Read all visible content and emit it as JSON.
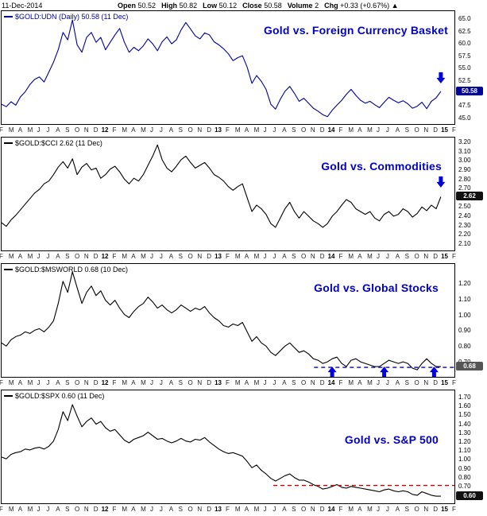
{
  "header": {
    "date": "11-Dec-2014",
    "fields": [
      {
        "label": "Open",
        "value": "50.52"
      },
      {
        "label": "High",
        "value": "50.82"
      },
      {
        "label": "Low",
        "value": "50.12"
      },
      {
        "label": "Close",
        "value": "50.58"
      },
      {
        "label": "Volume",
        "value": "2"
      },
      {
        "label": "Chg",
        "value": "+0.33 (+0.67%)"
      }
    ],
    "change_arrow": "▲"
  },
  "colors": {
    "title_blue": "#0000cc",
    "panel1_line": "#000099",
    "line_black": "#000000",
    "arrow_blue": "#0000dd",
    "support_dash_blue": "#0000cc",
    "resistance_dash_red": "#cc0000"
  },
  "x_axis_labels": [
    "F",
    "M",
    "A",
    "M",
    "J",
    "J",
    "A",
    "S",
    "O",
    "N",
    "D",
    "12",
    "F",
    "M",
    "A",
    "M",
    "J",
    "J",
    "A",
    "S",
    "O",
    "N",
    "D",
    "13",
    "F",
    "M",
    "A",
    "M",
    "J",
    "J",
    "A",
    "S",
    "O",
    "N",
    "D",
    "14",
    "F",
    "M",
    "A",
    "M",
    "J",
    "J",
    "A",
    "S",
    "O",
    "N",
    "D",
    "15",
    "F"
  ],
  "chart_data": [
    {
      "type": "line",
      "legend": "$GOLD:UDN (Daily) 50.58 (11 Dec)",
      "title": "Gold vs. Foreign Currency Basket",
      "line_color": "#000099",
      "ylim": [
        44.0,
        66.8
      ],
      "yticks": [
        "65.0",
        "62.5",
        "60.0",
        "57.5",
        "55.0",
        "52.5",
        "50.0",
        "47.5",
        "45.0"
      ],
      "last_value": 50.58,
      "last_label": "50.58",
      "last_box_color": "#000099",
      "x_end": 0.97,
      "values": [
        48.0,
        47.5,
        48.5,
        47.8,
        49.5,
        50.5,
        52.0,
        53.0,
        53.5,
        52.5,
        54.5,
        56.5,
        59.0,
        62.5,
        61.0,
        65.0,
        60.0,
        58.5,
        61.5,
        62.5,
        60.5,
        61.5,
        59.0,
        60.5,
        62.0,
        63.3,
        60.5,
        58.5,
        59.5,
        58.8,
        59.8,
        61.2,
        60.2,
        58.8,
        60.6,
        61.6,
        60.2,
        61.0,
        63.0,
        64.5,
        63.2,
        61.8,
        61.2,
        62.4,
        62.0,
        60.6,
        60.0,
        59.2,
        58.2,
        56.8,
        57.4,
        57.8,
        55.5,
        52.2,
        53.8,
        52.6,
        51.0,
        48.0,
        47.0,
        49.0,
        50.6,
        51.6,
        50.2,
        48.6,
        49.2,
        48.2,
        47.2,
        46.6,
        45.9,
        45.5,
        46.8,
        47.8,
        48.8,
        50.0,
        51.0,
        49.8,
        48.8,
        48.2,
        48.6,
        47.9,
        47.3,
        48.4,
        49.4,
        48.8,
        48.3,
        48.7,
        48.1,
        47.2,
        47.6,
        48.4,
        47.1,
        48.6,
        49.3,
        50.6
      ],
      "annotations": [
        {
          "type": "arrow_down",
          "x": 0.97,
          "y": 52.2,
          "color": "#0000dd"
        }
      ]
    },
    {
      "type": "line",
      "legend": "$GOLD:$CCI 2.62 (11 Dec)",
      "title": "Gold vs. Commodities",
      "line_color": "#000000",
      "ylim": [
        2.04,
        3.26
      ],
      "yticks": [
        "3.20",
        "3.10",
        "3.00",
        "2.90",
        "2.80",
        "2.70",
        "2.60",
        "2.50",
        "2.40",
        "2.30",
        "2.20",
        "2.10"
      ],
      "last_value": 2.62,
      "last_label": "2.62",
      "last_box_color": "#111111",
      "x_end": 0.97,
      "values": [
        2.34,
        2.3,
        2.37,
        2.42,
        2.48,
        2.54,
        2.6,
        2.66,
        2.7,
        2.76,
        2.79,
        2.86,
        2.94,
        3.0,
        2.93,
        3.03,
        2.86,
        2.94,
        2.98,
        2.91,
        2.93,
        2.82,
        2.86,
        2.92,
        2.95,
        2.89,
        2.81,
        2.76,
        2.82,
        2.79,
        2.86,
        2.96,
        3.06,
        3.18,
        3.02,
        2.93,
        2.89,
        2.95,
        3.02,
        3.06,
        2.99,
        2.93,
        2.96,
        2.99,
        2.93,
        2.86,
        2.83,
        2.79,
        2.73,
        2.69,
        2.73,
        2.76,
        2.61,
        2.46,
        2.53,
        2.49,
        2.43,
        2.33,
        2.29,
        2.39,
        2.49,
        2.56,
        2.46,
        2.39,
        2.46,
        2.41,
        2.36,
        2.33,
        2.29,
        2.33,
        2.41,
        2.46,
        2.53,
        2.59,
        2.56,
        2.49,
        2.46,
        2.43,
        2.46,
        2.39,
        2.36,
        2.43,
        2.46,
        2.41,
        2.43,
        2.49,
        2.46,
        2.4,
        2.44,
        2.51,
        2.47,
        2.53,
        2.49,
        2.62
      ],
      "annotations": [
        {
          "type": "arrow_down",
          "x": 0.97,
          "y": 2.72,
          "color": "#0000dd"
        }
      ]
    },
    {
      "type": "line",
      "legend": "$GOLD:$MSWORLD 0.68 (10 Dec)",
      "title": "Gold vs. Global Stocks",
      "line_color": "#000000",
      "ylim": [
        0.615,
        1.33
      ],
      "yticks": [
        "1.20",
        "1.10",
        "1.00",
        "0.90",
        "0.80",
        "0.70"
      ],
      "last_value": 0.68,
      "last_label": "0.68",
      "last_box_color": "#555555",
      "x_end": 0.97,
      "values": [
        0.83,
        0.81,
        0.85,
        0.87,
        0.88,
        0.9,
        0.89,
        0.91,
        0.92,
        0.9,
        0.93,
        0.97,
        1.08,
        1.22,
        1.15,
        1.28,
        1.18,
        1.08,
        1.15,
        1.19,
        1.13,
        1.16,
        1.1,
        1.07,
        1.1,
        1.05,
        1.01,
        0.99,
        1.03,
        1.06,
        1.08,
        1.12,
        1.09,
        1.05,
        1.07,
        1.04,
        1.02,
        1.04,
        1.07,
        1.05,
        1.03,
        1.05,
        1.04,
        1.06,
        1.02,
        0.99,
        0.97,
        0.94,
        0.93,
        0.95,
        0.94,
        0.96,
        0.9,
        0.84,
        0.87,
        0.83,
        0.81,
        0.77,
        0.75,
        0.78,
        0.81,
        0.83,
        0.8,
        0.77,
        0.78,
        0.76,
        0.73,
        0.72,
        0.7,
        0.71,
        0.73,
        0.74,
        0.7,
        0.68,
        0.72,
        0.73,
        0.71,
        0.7,
        0.69,
        0.68,
        0.68,
        0.7,
        0.72,
        0.71,
        0.7,
        0.71,
        0.7,
        0.67,
        0.66,
        0.7,
        0.73,
        0.7,
        0.68,
        0.68
      ],
      "annotations": [
        {
          "type": "hline",
          "x0": 0.69,
          "x1": 1.0,
          "y": 0.675,
          "color": "#0000cc"
        },
        {
          "type": "arrow_up",
          "x": 0.73,
          "y": 0.68,
          "color": "#0000dd"
        },
        {
          "type": "arrow_up",
          "x": 0.845,
          "y": 0.68,
          "color": "#0000dd"
        },
        {
          "type": "arrow_up",
          "x": 0.955,
          "y": 0.68,
          "color": "#0000dd"
        }
      ]
    },
    {
      "type": "line",
      "legend": "$GOLD:$SPX 0.60 (11 Dec)",
      "title": "Gold vs. S&P 500",
      "line_color": "#000000",
      "ylim": [
        0.52,
        1.79
      ],
      "yticks": [
        "1.70",
        "1.60",
        "1.50",
        "1.40",
        "1.30",
        "1.20",
        "1.10",
        "1.00",
        "0.90",
        "0.80",
        "0.70",
        "0.60"
      ],
      "last_value": 0.6,
      "last_label": "0.60",
      "last_box_color": "#111111",
      "x_end": 0.97,
      "values": [
        1.04,
        1.02,
        1.07,
        1.09,
        1.1,
        1.13,
        1.12,
        1.14,
        1.15,
        1.13,
        1.16,
        1.22,
        1.35,
        1.55,
        1.45,
        1.63,
        1.5,
        1.38,
        1.44,
        1.48,
        1.41,
        1.44,
        1.37,
        1.33,
        1.35,
        1.29,
        1.23,
        1.2,
        1.24,
        1.26,
        1.28,
        1.32,
        1.28,
        1.24,
        1.25,
        1.22,
        1.2,
        1.22,
        1.25,
        1.22,
        1.21,
        1.24,
        1.23,
        1.26,
        1.21,
        1.17,
        1.13,
        1.1,
        1.08,
        1.09,
        1.07,
        1.05,
        0.99,
        0.92,
        0.95,
        0.89,
        0.85,
        0.8,
        0.77,
        0.8,
        0.83,
        0.85,
        0.81,
        0.78,
        0.78,
        0.76,
        0.73,
        0.71,
        0.68,
        0.69,
        0.71,
        0.73,
        0.7,
        0.69,
        0.71,
        0.7,
        0.69,
        0.68,
        0.67,
        0.66,
        0.65,
        0.67,
        0.68,
        0.66,
        0.65,
        0.66,
        0.65,
        0.62,
        0.61,
        0.65,
        0.63,
        0.61,
        0.6,
        0.6
      ],
      "annotations": [
        {
          "type": "hline",
          "x0": 0.6,
          "x1": 1.0,
          "y": 0.72,
          "color": "#cc0000"
        }
      ]
    }
  ]
}
